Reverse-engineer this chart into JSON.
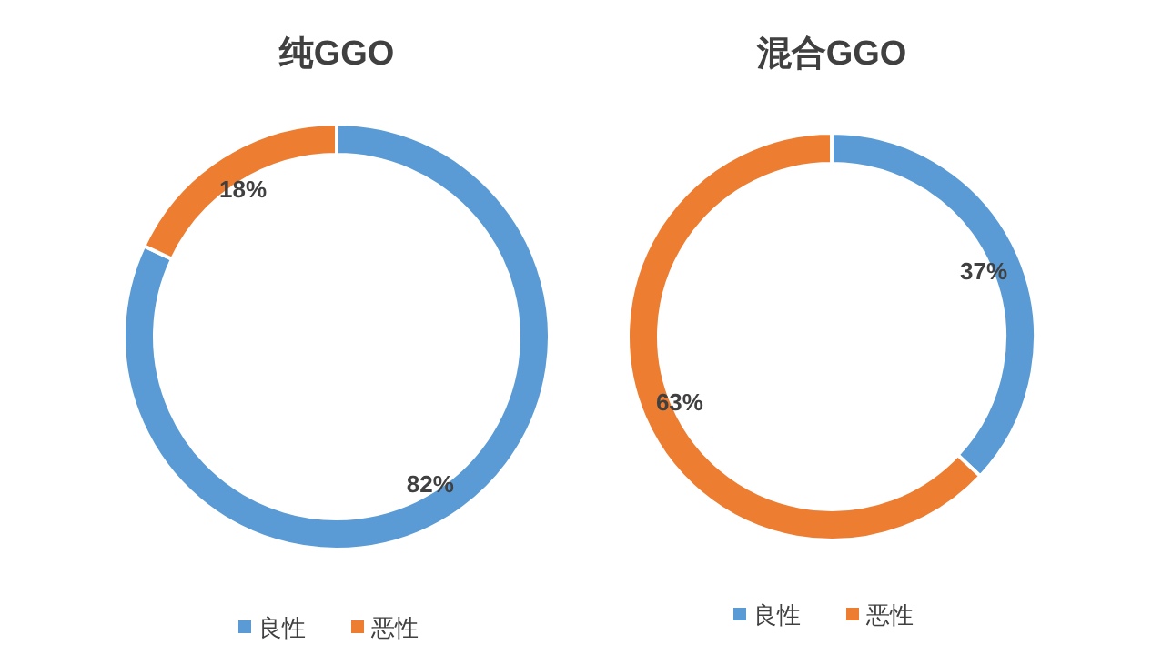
{
  "chart_data": [
    {
      "type": "donut",
      "title": "纯GGO",
      "categories": [
        "良性",
        "恶性"
      ],
      "values": [
        82,
        18
      ],
      "colors": [
        "#5b9bd5",
        "#ed7d31"
      ],
      "value_labels": [
        "82%",
        "18%"
      ],
      "legend": "bottom"
    },
    {
      "type": "donut",
      "title": "混合GGO",
      "categories": [
        "良性",
        "恶性"
      ],
      "values": [
        37,
        63
      ],
      "colors": [
        "#5b9bd5",
        "#ed7d31"
      ],
      "value_labels": [
        "37%",
        "63%"
      ],
      "legend": "bottom"
    }
  ]
}
